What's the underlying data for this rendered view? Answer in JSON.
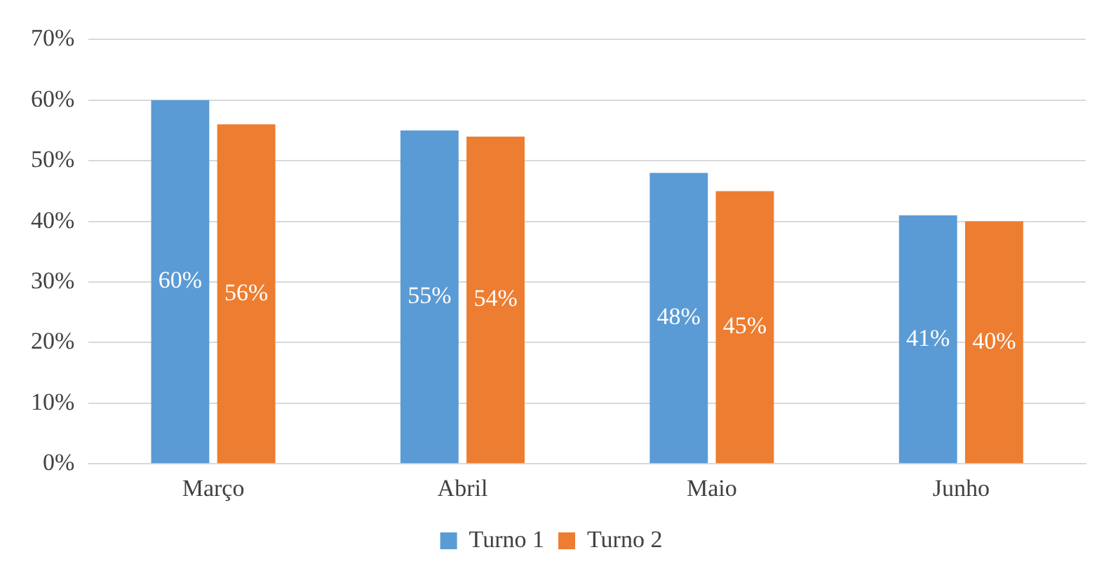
{
  "chart_data": {
    "type": "bar",
    "categories": [
      "Março",
      "Abril",
      "Maio",
      "Junho"
    ],
    "series": [
      {
        "name": "Turno 1",
        "color": "#5b9bd5",
        "values": [
          60,
          55,
          48,
          41
        ],
        "value_labels": [
          "60%",
          "55%",
          "48%",
          "41%"
        ]
      },
      {
        "name": "Turno 2",
        "color": "#ed7d31",
        "values": [
          56,
          54,
          45,
          40
        ],
        "value_labels": [
          "56%",
          "54%",
          "45%",
          "40%"
        ]
      }
    ],
    "ylim": [
      0,
      70
    ],
    "yticks": [
      {
        "value": 0,
        "label": "0%"
      },
      {
        "value": 10,
        "label": "10%"
      },
      {
        "value": 20,
        "label": "20%"
      },
      {
        "value": 30,
        "label": "30%"
      },
      {
        "value": 40,
        "label": "40%"
      },
      {
        "value": 50,
        "label": "50%"
      },
      {
        "value": 60,
        "label": "60%"
      },
      {
        "value": 70,
        "label": "70%"
      }
    ],
    "grid": "y",
    "legend": "bottom"
  }
}
